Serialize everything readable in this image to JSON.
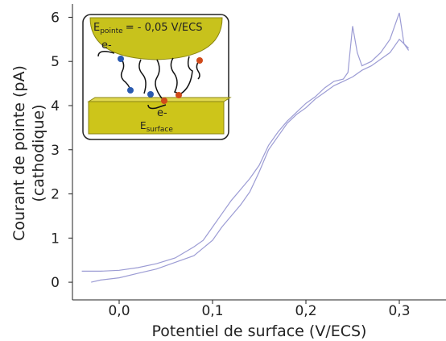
{
  "chart_data": {
    "type": "line",
    "x_label": "Potentiel de surface (V/ECS)",
    "y_label": [
      "Courant de pointe (pA)",
      "(cathodique)"
    ],
    "xlim": [
      -0.05,
      0.35
    ],
    "ylim": [
      -0.4,
      6.3
    ],
    "xticks": [
      {
        "value": 0,
        "label": "0,0"
      },
      {
        "value": 0.1,
        "label": "0,1"
      },
      {
        "value": 0.2,
        "label": "0,2"
      },
      {
        "value": 0.3,
        "label": "0,3"
      }
    ],
    "yticks": [
      0,
      1,
      2,
      3,
      4,
      5,
      6
    ],
    "series": [
      {
        "color": "#9c9cd4",
        "x": [
          -0.04,
          -0.02,
          0.0,
          0.02,
          0.04,
          0.06,
          0.08,
          0.09,
          0.1,
          0.11,
          0.12,
          0.13,
          0.14,
          0.15,
          0.16,
          0.17,
          0.18,
          0.19,
          0.2,
          0.21,
          0.22,
          0.23,
          0.24,
          0.245,
          0.25,
          0.255,
          0.26,
          0.27,
          0.28,
          0.29,
          0.3,
          0.305,
          0.31
        ],
        "values": [
          0.25,
          0.25,
          0.27,
          0.33,
          0.42,
          0.55,
          0.8,
          0.95,
          1.25,
          1.55,
          1.85,
          2.1,
          2.35,
          2.65,
          3.1,
          3.4,
          3.65,
          3.85,
          4.05,
          4.2,
          4.4,
          4.55,
          4.6,
          4.75,
          5.8,
          5.2,
          4.9,
          5.0,
          5.2,
          5.5,
          6.1,
          5.4,
          5.25
        ]
      },
      {
        "color": "#9c9cd4",
        "x": [
          -0.03,
          -0.02,
          0.0,
          0.02,
          0.04,
          0.06,
          0.08,
          0.1,
          0.11,
          0.12,
          0.13,
          0.14,
          0.15,
          0.16,
          0.17,
          0.18,
          0.19,
          0.2,
          0.21,
          0.22,
          0.23,
          0.24,
          0.25,
          0.26,
          0.27,
          0.28,
          0.29,
          0.3,
          0.31
        ],
        "values": [
          0.0,
          0.05,
          0.1,
          0.2,
          0.3,
          0.45,
          0.6,
          0.95,
          1.25,
          1.5,
          1.75,
          2.05,
          2.5,
          3.0,
          3.3,
          3.6,
          3.8,
          3.95,
          4.15,
          4.3,
          4.45,
          4.55,
          4.65,
          4.8,
          4.9,
          5.05,
          5.2,
          5.5,
          5.3
        ]
      }
    ],
    "inset": {
      "tip_label": "E",
      "tip_subscript": "pointe",
      "tip_value": "= - 0,05 V/ECS",
      "electron_top": "e-",
      "electron_bottom": "e-",
      "surface_label": "E",
      "surface_subscript": "surface"
    }
  }
}
